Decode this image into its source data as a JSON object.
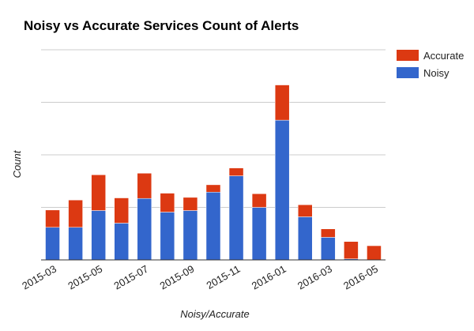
{
  "chart_data": {
    "type": "bar",
    "stacked": true,
    "title": "Noisy vs Accurate Services Count of Alerts",
    "xlabel": "Noisy/Accurate",
    "ylabel": "Count",
    "categories": [
      "2015-03",
      "2015-04",
      "2015-05",
      "2015-06",
      "2015-07",
      "2015-08",
      "2015-09",
      "2015-10",
      "2015-11",
      "2015-12",
      "2016-01",
      "2016-02",
      "2016-03",
      "2016-04",
      "2016-05"
    ],
    "x_tick_labels": [
      "2015-03",
      "2015-05",
      "2015-07",
      "2015-09",
      "2015-11",
      "2016-01",
      "2016-03",
      "2016-05"
    ],
    "series": [
      {
        "name": "Noisy",
        "color": "#3366cc",
        "values": [
          62,
          62,
          94,
          70,
          117,
          91,
          94,
          129,
          160,
          100,
          266,
          82,
          43,
          2,
          0
        ]
      },
      {
        "name": "Accurate",
        "color": "#dc3912",
        "values": [
          33,
          52,
          68,
          48,
          48,
          36,
          25,
          14,
          15,
          26,
          67,
          23,
          16,
          33,
          27
        ]
      }
    ],
    "ylim": [
      0,
      400
    ],
    "y_gridlines": [
      0,
      100,
      200,
      300,
      400
    ],
    "grid": true,
    "legend": "right",
    "legend_entries": [
      "Accurate",
      "Noisy"
    ]
  }
}
